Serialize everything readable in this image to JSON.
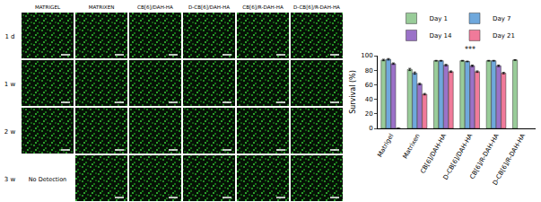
{
  "image_panel": {
    "columns": [
      "MATRIGEL",
      "MATRIXEN",
      "CB[6]/DAH-HA",
      "D-CB[6]/DAH-HA",
      "CB[6]/R-DAH-HA",
      "D-CB[6]/R-DAH-HA"
    ],
    "rows": [
      "1 d",
      "1 w",
      "2 w",
      "3 w"
    ],
    "missing": [
      {
        "row": "3 w",
        "column": "MATRIGEL",
        "text": "No Detection"
      }
    ]
  },
  "chart_data": {
    "type": "bar",
    "y_label": "Survival (%)",
    "categories": [
      "Matrigel",
      "Matrixen",
      "CB[6]/DAH-HA",
      "D-CB[6]/DAH-HA",
      "CB[6]/R-DAH-HA",
      "D-CB[6]/R-DAH-HA"
    ],
    "series": [
      {
        "name": "Day 1",
        "color": "#99cc99",
        "values": [
          94,
          81,
          93,
          93,
          93,
          94
        ],
        "errors": [
          1,
          1.5,
          0.5,
          0.5,
          0.5,
          0.5
        ]
      },
      {
        "name": "Day 7",
        "color": "#6fa8dc",
        "values": [
          95,
          76,
          93,
          92,
          93,
          null
        ],
        "errors": [
          1,
          1.5,
          0.5,
          0.5,
          0.5,
          null
        ]
      },
      {
        "name": "Day 14",
        "color": "#9b72c8",
        "values": [
          89,
          61,
          87,
          86,
          86,
          null
        ],
        "errors": [
          1,
          1,
          1,
          1,
          1,
          null
        ]
      },
      {
        "name": "Day 21",
        "color": "#f07a9a",
        "values": [
          0,
          47,
          78,
          78,
          76,
          null
        ],
        "errors": [
          0,
          1,
          1,
          1,
          1,
          null
        ]
      }
    ],
    "ylim": [
      0,
      100
    ],
    "yticks": [
      0,
      20,
      40,
      60,
      80,
      100
    ],
    "legend": "top",
    "annotations": [
      {
        "category": "D-CB[6]/DAH-HA",
        "y": 100,
        "text": "***"
      }
    ]
  }
}
